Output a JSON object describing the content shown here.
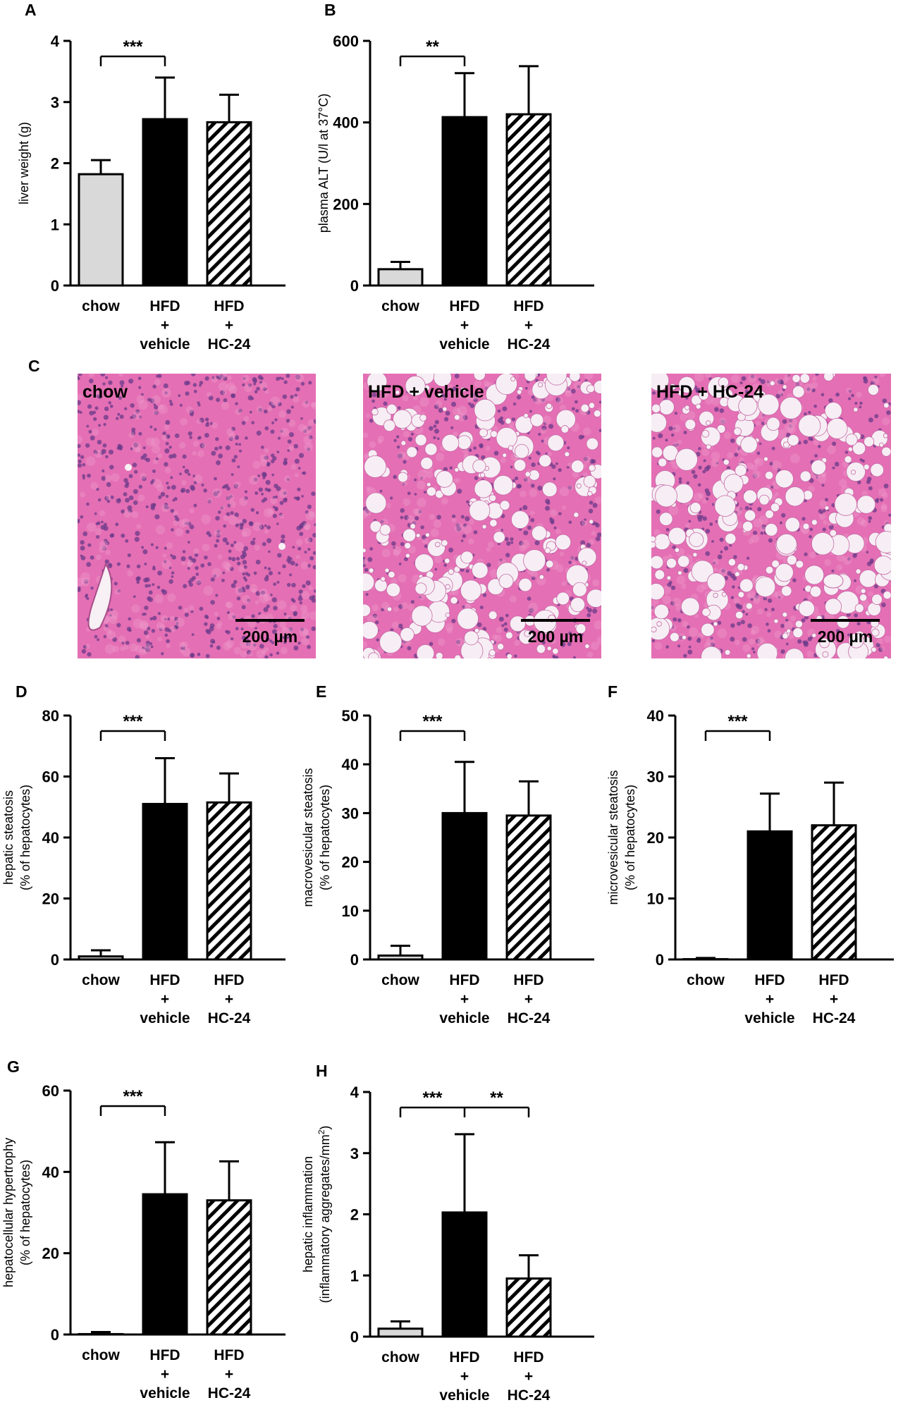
{
  "categories": [
    "chow",
    "HFD\n+\nvehicle",
    "HFD\n+\nHC-24"
  ],
  "colors": {
    "chow": "#d9d9d9",
    "vehicle": "#000000",
    "hc24_stripe": "#000000",
    "axis": "#000000",
    "tissue_pink": "#e46fb4",
    "nuclei": "#6a3a8a",
    "vacuole": "#f6eef4"
  },
  "chart_data": [
    {
      "panel": "A",
      "type": "bar",
      "categories": [
        "chow",
        "HFD\n+\nvehicle",
        "HFD\n+\nHC-24"
      ],
      "values": [
        1.82,
        2.72,
        2.67
      ],
      "errors": [
        0.23,
        0.68,
        0.45
      ],
      "ylabel": "liver weight (g)",
      "ylim": [
        0,
        4
      ],
      "yticks": [
        0,
        1,
        2,
        3,
        4
      ],
      "significance": [
        {
          "from": 0,
          "to": 1,
          "label": "***"
        }
      ]
    },
    {
      "panel": "B",
      "type": "bar",
      "categories": [
        "chow",
        "HFD\n+\nvehicle",
        "HFD\n+\nHC-24"
      ],
      "values": [
        40,
        413,
        420
      ],
      "errors": [
        18,
        108,
        118
      ],
      "ylabel": "plasma ALT (U/l at 37°C)",
      "ylim": [
        0,
        600
      ],
      "yticks": [
        0,
        200,
        400,
        600
      ],
      "significance": [
        {
          "from": 0,
          "to": 1,
          "label": "**"
        }
      ]
    },
    {
      "panel": "D",
      "type": "bar",
      "categories": [
        "chow",
        "HFD\n+\nvehicle",
        "HFD\n+\nHC-24"
      ],
      "values": [
        1,
        51,
        51.5
      ],
      "errors": [
        2,
        15,
        9.5
      ],
      "ylabel": "hepatic steatosis\n(% of hepatocytes)",
      "ylim": [
        0,
        80
      ],
      "yticks": [
        0,
        20,
        40,
        60,
        80
      ],
      "significance": [
        {
          "from": 0,
          "to": 1,
          "label": "***"
        }
      ]
    },
    {
      "panel": "E",
      "type": "bar",
      "categories": [
        "chow",
        "HFD\n+\nvehicle",
        "HFD\n+\nHC-24"
      ],
      "values": [
        0.8,
        30,
        29.5
      ],
      "errors": [
        2,
        10.5,
        7
      ],
      "ylabel": "macrovesicular steatosis\n(% of hepatocytes)",
      "ylim": [
        0,
        50
      ],
      "yticks": [
        0,
        10,
        20,
        30,
        40,
        50
      ],
      "significance": [
        {
          "from": 0,
          "to": 1,
          "label": "***"
        }
      ]
    },
    {
      "panel": "F",
      "type": "bar",
      "categories": [
        "chow",
        "HFD\n+\nvehicle",
        "HFD\n+\nHC-24"
      ],
      "values": [
        0.05,
        21,
        22
      ],
      "errors": [
        0.2,
        6.2,
        7
      ],
      "ylabel": "microvesicular steatosis\n(% of hepatocytes)",
      "ylim": [
        0,
        40
      ],
      "yticks": [
        0,
        10,
        20,
        30,
        40
      ],
      "significance": [
        {
          "from": 0,
          "to": 1,
          "label": "***"
        }
      ]
    },
    {
      "panel": "G",
      "type": "bar",
      "categories": [
        "chow",
        "HFD\n+\nvehicle",
        "HFD\n+\nHC-24"
      ],
      "values": [
        0.1,
        34.5,
        33
      ],
      "errors": [
        0.5,
        12.8,
        9.6
      ],
      "ylabel": "hepatocellular hypertrophy\n(% of hepatocytes)",
      "ylim": [
        0,
        60
      ],
      "yticks": [
        0,
        20,
        40,
        60
      ],
      "significance": [
        {
          "from": 0,
          "to": 1,
          "label": "***"
        }
      ]
    },
    {
      "panel": "H",
      "type": "bar",
      "categories": [
        "chow",
        "HFD\n+\nvehicle",
        "HFD\n+\nHC-24"
      ],
      "values": [
        0.13,
        2.03,
        0.95
      ],
      "errors": [
        0.12,
        1.28,
        0.38
      ],
      "ylabel": "hepatic inflammation\n(inflammatory aggregates/mm²)",
      "ylim": [
        0,
        4
      ],
      "yticks": [
        0,
        1,
        2,
        3,
        4
      ],
      "significance": [
        {
          "from": 0,
          "to": 1,
          "label": "***"
        },
        {
          "from": 1,
          "to": 2,
          "label": "**"
        }
      ]
    }
  ],
  "micrographs": {
    "panel": "C",
    "images": [
      {
        "title": "chow",
        "scale_bar": "200 µm",
        "steatosis": "none"
      },
      {
        "title": "HFD + vehicle",
        "scale_bar": "200 µm",
        "steatosis": "heavy"
      },
      {
        "title": "HFD + HC-24",
        "scale_bar": "200 µm",
        "steatosis": "heavy"
      }
    ]
  }
}
